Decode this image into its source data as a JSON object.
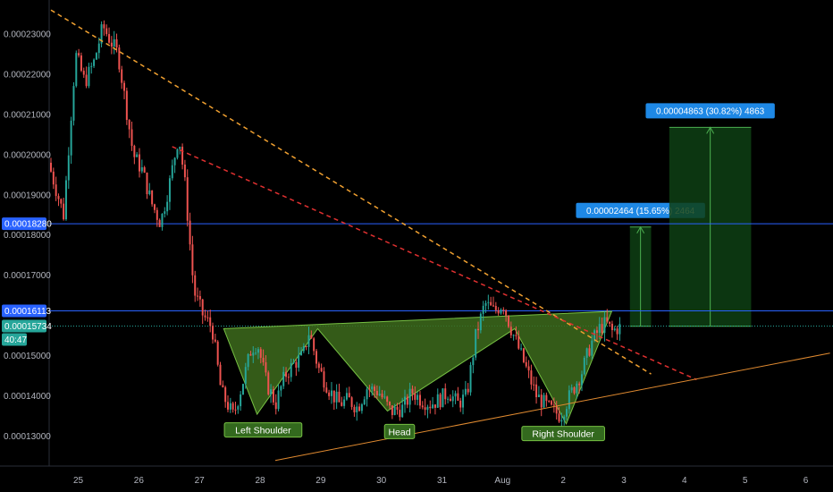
{
  "colors": {
    "background": "#000000",
    "up": "#26a69a",
    "down": "#ef5350",
    "level": "#2962ff",
    "pattern_fill": "#3d6b1c",
    "pattern_stroke": "#76c043",
    "orange_line": "#f0a030",
    "red_line": "#e03030",
    "support_line": "#e08a30",
    "measure": "#4caf50",
    "measure_fill": "#0e3f14",
    "label_box": "#1e88e5",
    "price_tag": "#26a69a",
    "axis_text": "#b2b5be"
  },
  "chart_data": {
    "type": "candlestick",
    "y_axis_side": "left",
    "ylim": [
      0.000124,
      0.0002385
    ],
    "xlim": [
      24.55,
      6.5
    ],
    "y_ticks": [
      "0.00023000",
      "0.00022000",
      "0.00021000",
      "0.00020000",
      "0.00019000",
      "0.00018000",
      "0.00017000",
      "0.00015000",
      "0.00014000",
      "0.00013000"
    ],
    "y_tick_values": [
      0.00023,
      0.00022,
      0.00021,
      0.0002,
      0.00019,
      0.00018,
      0.00017,
      0.00015,
      0.00014,
      0.00013
    ],
    "x_ticks": [
      "25",
      "26",
      "27",
      "28",
      "29",
      "30",
      "31",
      "Aug",
      "2",
      "3",
      "4",
      "5",
      "6"
    ],
    "x_tick_values": [
      25,
      26,
      27,
      28,
      29,
      30,
      31,
      32,
      33,
      34,
      35,
      36,
      37
    ],
    "price_levels": [
      {
        "label": "0.00018280",
        "value": 0.0001828,
        "kind": "resistance"
      },
      {
        "label": "0.00016113",
        "value": 0.00016113,
        "kind": "neckline"
      }
    ],
    "current_price": {
      "label": "0.00015734",
      "value": 0.00015734,
      "countdown": "40:47"
    },
    "candle_anchors": [
      [
        24.55,
        0.000198
      ],
      [
        24.8,
        0.000185
      ],
      [
        25.0,
        0.000225
      ],
      [
        25.15,
        0.000218
      ],
      [
        25.3,
        0.000223
      ],
      [
        25.45,
        0.000232
      ],
      [
        25.55,
        0.000229
      ],
      [
        25.7,
        0.000225
      ],
      [
        25.85,
        0.00021
      ],
      [
        25.95,
        0.0002
      ],
      [
        26.1,
        0.000196
      ],
      [
        26.25,
        0.000188
      ],
      [
        26.4,
        0.000183
      ],
      [
        26.55,
        0.000193
      ],
      [
        26.7,
        0.000205
      ],
      [
        26.8,
        0.000193
      ],
      [
        26.95,
        0.000166
      ],
      [
        27.1,
        0.00016
      ],
      [
        27.25,
        0.000157
      ],
      [
        27.4,
        0.000141
      ],
      [
        27.6,
        0.000135
      ],
      [
        27.75,
        0.000143
      ],
      [
        27.9,
        0.000152
      ],
      [
        28.0,
        0.000153
      ],
      [
        28.15,
        0.000143
      ],
      [
        28.3,
        0.000138
      ],
      [
        28.45,
        0.000145
      ],
      [
        28.6,
        0.000148
      ],
      [
        28.75,
        0.00015
      ],
      [
        28.85,
        0.000156
      ],
      [
        29.0,
        0.000147
      ],
      [
        29.2,
        0.000141
      ],
      [
        29.35,
        0.000138
      ],
      [
        29.5,
        0.000139
      ],
      [
        29.65,
        0.000137
      ],
      [
        29.8,
        0.000142
      ],
      [
        30.0,
        0.000141
      ],
      [
        30.2,
        0.000136
      ],
      [
        30.4,
        0.000137
      ],
      [
        30.55,
        0.000141
      ],
      [
        30.7,
        0.000139
      ],
      [
        30.85,
        0.000138
      ],
      [
        31.0,
        0.000139
      ],
      [
        31.15,
        0.000141
      ],
      [
        31.3,
        0.000138
      ],
      [
        31.45,
        0.00014
      ],
      [
        31.6,
        0.000155
      ],
      [
        31.75,
        0.000163
      ],
      [
        31.9,
        0.000161
      ],
      [
        32.05,
        0.000163
      ],
      [
        32.15,
        0.000158
      ],
      [
        32.3,
        0.000152
      ],
      [
        32.45,
        0.000146
      ],
      [
        32.6,
        0.00014
      ],
      [
        32.8,
        0.000137
      ],
      [
        33.0,
        0.000135
      ],
      [
        33.15,
        0.00014
      ],
      [
        33.35,
        0.000146
      ],
      [
        33.5,
        0.000153
      ],
      [
        33.65,
        0.000157
      ],
      [
        33.75,
        0.000158
      ],
      [
        33.85,
        0.000156
      ],
      [
        33.95,
        0.000157
      ]
    ],
    "trend_lines": [
      {
        "name": "orange-downtrend",
        "from": [
          24.55,
          0.000236
        ],
        "to": [
          34.45,
          0.0001454
        ]
      },
      {
        "name": "red-downtrend",
        "from": [
          26.55,
          0.000202
        ],
        "to": [
          35.2,
          0.000144
        ]
      },
      {
        "name": "support-uptrend",
        "from": [
          28.25,
          0.0001239
        ],
        "to": [
          37.4,
          0.0001506
        ]
      }
    ],
    "inverse_head_shoulders": {
      "points": [
        [
          27.4,
          0.0001567
        ],
        [
          27.95,
          0.0001354
        ],
        [
          28.95,
          0.0001567
        ],
        [
          30.1,
          0.0001362
        ],
        [
          32.2,
          0.0001567
        ],
        [
          33.05,
          0.000133
        ],
        [
          33.8,
          0.000161
        ]
      ],
      "labels": [
        {
          "text": "Left Shoulder",
          "x": 28.05,
          "y": 0.0001315
        },
        {
          "text": "Head",
          "x": 30.3,
          "y": 0.0001311
        },
        {
          "text": "Right Shoulder",
          "x": 33.0,
          "y": 0.0001306
        }
      ]
    },
    "measurements": [
      {
        "label": "0.00002464 (15.65%) 2464",
        "x_from": 34.1,
        "x_to": 34.45,
        "y_from": 0.0001573,
        "y_to": 0.000182
      },
      {
        "label": "0.00004863 (30.82%) 4863",
        "x_from": 34.75,
        "x_to": 36.1,
        "y_from": 0.0001573,
        "y_to": 0.0002068
      }
    ]
  }
}
